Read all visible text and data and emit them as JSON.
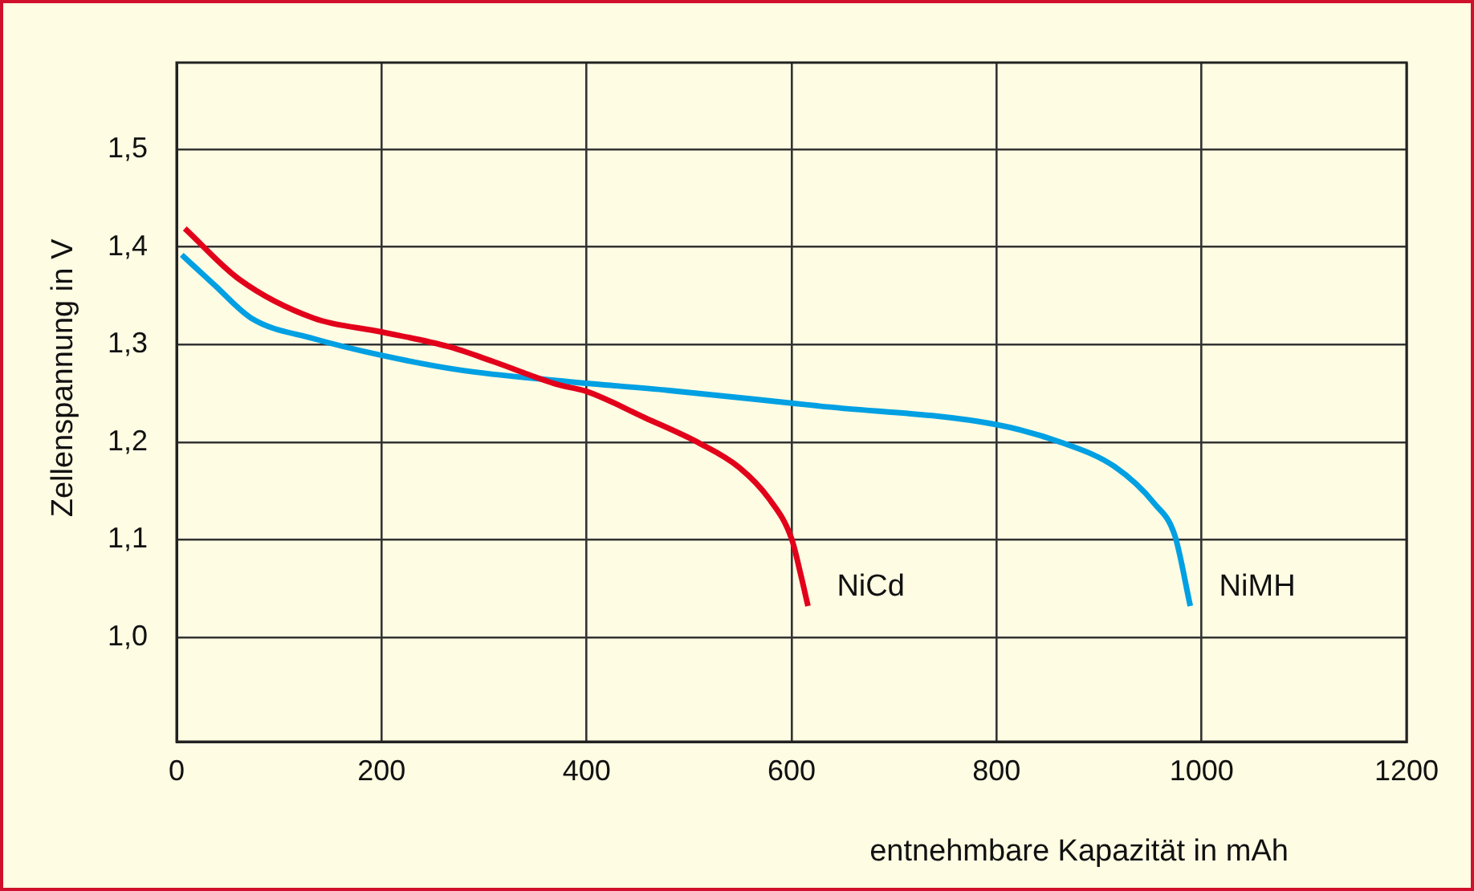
{
  "chart_data": {
    "type": "line",
    "xlabel": "entnehmbare Kapazität in mAh",
    "ylabel": "Zellenspannung in V",
    "xlim": [
      0,
      1200
    ],
    "xticks": [
      0,
      200,
      400,
      600,
      800,
      1000,
      1200
    ],
    "ylim": [
      0.893,
      1.589
    ],
    "yticks": [
      {
        "value": 1.0,
        "label": "1,0"
      },
      {
        "value": 1.1,
        "label": "1,1"
      },
      {
        "value": 1.2,
        "label": "1,2"
      },
      {
        "value": 1.3,
        "label": "1,3"
      },
      {
        "value": 1.4,
        "label": "1,4"
      },
      {
        "value": 1.5,
        "label": "1,5"
      }
    ],
    "grid": true,
    "legend": false,
    "marker": "none",
    "line_style": "solid",
    "series": [
      {
        "name": "NiCd",
        "color": "#e2001a",
        "x": [
          8,
          61,
          134,
          200,
          265,
          308,
          372,
          400,
          457,
          510,
          549,
          578,
          600,
          609,
          616
        ],
        "values": [
          1.419,
          1.367,
          1.327,
          1.313,
          1.298,
          1.283,
          1.259,
          1.252,
          1.225,
          1.199,
          1.174,
          1.142,
          1.101,
          1.064,
          1.032
        ]
      },
      {
        "name": "NiMH",
        "color": "#00a0e3",
        "x": [
          5,
          37,
          73,
          134,
          200,
          276,
          372,
          481,
          600,
          627,
          800,
          865,
          915,
          954,
          974,
          989
        ],
        "values": [
          1.392,
          1.361,
          1.327,
          1.306,
          1.289,
          1.274,
          1.263,
          1.253,
          1.24,
          1.237,
          1.218,
          1.199,
          1.175,
          1.137,
          1.104,
          1.032
        ]
      }
    ]
  }
}
